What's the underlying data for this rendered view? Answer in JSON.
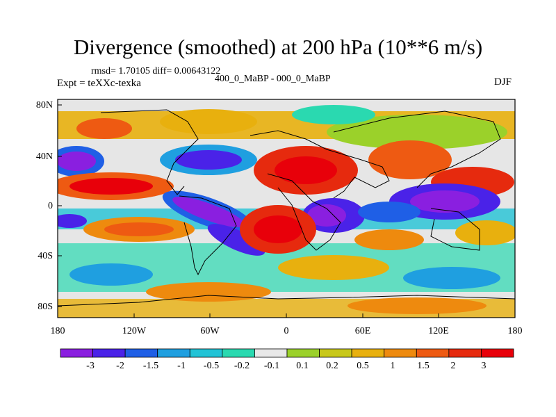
{
  "title": "Divergence (smoothed) at 200 hPa (10**6 m/s)",
  "stats": "rmsd= 1.70105 diff= 0.00643122",
  "experiment": "Expt = teXXc-texka",
  "comparison": "400_0_MaBP - 000_0_MaBP",
  "season": "DJF",
  "axes": {
    "lon_ticks": [
      "180",
      "120W",
      "60W",
      "0",
      "60E",
      "120E",
      "180"
    ],
    "lat_ticks": [
      "80N",
      "40N",
      "0",
      "40S",
      "80S"
    ]
  },
  "colorbar": {
    "labels": [
      "-3",
      "-2",
      "-1.5",
      "-1",
      "-0.5",
      "-0.2",
      "-0.1",
      "0.1",
      "0.2",
      "0.5",
      "1",
      "1.5",
      "2",
      "3"
    ],
    "colors": [
      "#8a1fe0",
      "#4a22e8",
      "#1f5fe6",
      "#1f9fe0",
      "#22c3d6",
      "#2ad9b0",
      "#e8e8e8",
      "#9bd12a",
      "#c8c81a",
      "#e8b00e",
      "#ee8a0e",
      "#ee5a12",
      "#e62a0e",
      "#e8000a"
    ]
  }
}
